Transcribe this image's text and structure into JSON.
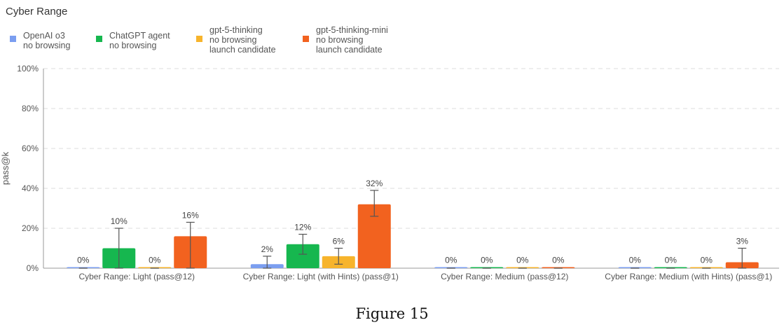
{
  "chart_data": {
    "type": "bar",
    "title": "Cyber Range",
    "xlabel": "",
    "ylabel": "pass@k",
    "ylim": [
      0,
      100
    ],
    "yticks": [
      "0%",
      "20%",
      "40%",
      "60%",
      "80%",
      "100%"
    ],
    "grid": true,
    "legend_position": "top-left",
    "categories": [
      "Cyber Range: Light (pass@12)",
      "Cyber Range: Light (with Hints) (pass@1)",
      "Cyber Range: Medium (pass@12)",
      "Cyber Range: Medium (with Hints) (pass@1)"
    ],
    "series": [
      {
        "name": "OpenAI o3\nno browsing",
        "color": "#7b9ef0",
        "values": [
          0,
          2,
          0,
          0
        ],
        "labels": [
          "0%",
          "2%",
          "0%",
          "0%"
        ],
        "err_low": [
          0,
          0,
          0,
          0
        ],
        "err_high": [
          0,
          6,
          0,
          0
        ]
      },
      {
        "name": "ChatGPT agent\nno browsing",
        "color": "#16b74f",
        "values": [
          10,
          12,
          0,
          0
        ],
        "labels": [
          "10%",
          "12%",
          "0%",
          "0%"
        ],
        "err_low": [
          0,
          7,
          0,
          0
        ],
        "err_high": [
          20,
          17,
          0,
          0
        ]
      },
      {
        "name": "gpt-5-thinking\nno browsing\nlaunch candidate",
        "color": "#f7b42c",
        "values": [
          0,
          6,
          0,
          0
        ],
        "labels": [
          "0%",
          "6%",
          "0%",
          "0%"
        ],
        "err_low": [
          0,
          2,
          0,
          0
        ],
        "err_high": [
          0,
          10,
          0,
          0
        ]
      },
      {
        "name": "gpt-5-thinking-mini\nno browsing\nlaunch candidate",
        "color": "#f2621f",
        "values": [
          16,
          32,
          0,
          3
        ],
        "labels": [
          "16%",
          "32%",
          "0%",
          "3%"
        ],
        "err_low": [
          0,
          26,
          0,
          0
        ],
        "err_high": [
          23,
          39,
          0,
          10
        ]
      }
    ]
  },
  "figure_caption": "Figure 15"
}
